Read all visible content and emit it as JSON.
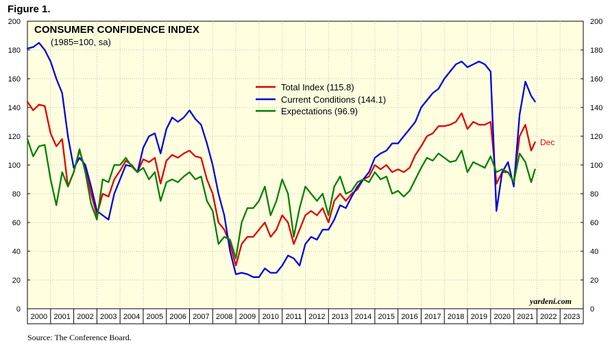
{
  "figure_label": "Figure 1.",
  "source": "Source: The Conference Board.",
  "chart_data": {
    "type": "line",
    "title": "CONSUMER CONFIDENCE INDEX",
    "subtitle": "(1985=100, sa)",
    "brand": "yardeni.com",
    "annotation": "Dec",
    "ylim": [
      0,
      200
    ],
    "yticks": [
      0,
      20,
      40,
      60,
      80,
      100,
      120,
      140,
      160,
      180,
      200
    ],
    "xlim": [
      2000,
      2024
    ],
    "xtick_labels": [
      "2000",
      "2001",
      "2002",
      "2003",
      "2004",
      "2005",
      "2006",
      "2007",
      "2008",
      "2009",
      "2010",
      "2011",
      "2012",
      "2013",
      "2014",
      "2015",
      "2016",
      "2017",
      "2018",
      "2019",
      "2020",
      "2021",
      "2022",
      "2023"
    ],
    "grid": true,
    "legend_position": "top-center",
    "colors": {
      "background": "#ffffe0",
      "total": "#e00000",
      "current": "#0000e0",
      "expectations": "#008000"
    },
    "series": [
      {
        "name": "Total Index",
        "legend": "Total Index (115.8)",
        "color": "#e00000",
        "points": [
          [
            2000.0,
            144
          ],
          [
            2000.25,
            138
          ],
          [
            2000.5,
            142
          ],
          [
            2000.75,
            141
          ],
          [
            2001.0,
            122
          ],
          [
            2001.25,
            113
          ],
          [
            2001.5,
            118
          ],
          [
            2001.75,
            85
          ],
          [
            2002.0,
            95
          ],
          [
            2002.25,
            110
          ],
          [
            2002.5,
            97
          ],
          [
            2002.75,
            80
          ],
          [
            2003.0,
            65
          ],
          [
            2003.25,
            80
          ],
          [
            2003.5,
            78
          ],
          [
            2003.75,
            90
          ],
          [
            2004.0,
            96
          ],
          [
            2004.25,
            103
          ],
          [
            2004.5,
            100
          ],
          [
            2004.75,
            95
          ],
          [
            2005.0,
            104
          ],
          [
            2005.25,
            102
          ],
          [
            2005.5,
            105
          ],
          [
            2005.75,
            87
          ],
          [
            2006.0,
            103
          ],
          [
            2006.25,
            107
          ],
          [
            2006.5,
            105
          ],
          [
            2006.75,
            108
          ],
          [
            2007.0,
            110
          ],
          [
            2007.25,
            106
          ],
          [
            2007.5,
            105
          ],
          [
            2007.75,
            90
          ],
          [
            2008.0,
            80
          ],
          [
            2008.25,
            60
          ],
          [
            2008.5,
            55
          ],
          [
            2008.75,
            45
          ],
          [
            2009.0,
            30
          ],
          [
            2009.25,
            45
          ],
          [
            2009.5,
            50
          ],
          [
            2009.75,
            50
          ],
          [
            2010.0,
            55
          ],
          [
            2010.25,
            60
          ],
          [
            2010.5,
            50
          ],
          [
            2010.75,
            55
          ],
          [
            2011.0,
            65
          ],
          [
            2011.25,
            60
          ],
          [
            2011.5,
            45
          ],
          [
            2011.75,
            55
          ],
          [
            2012.0,
            65
          ],
          [
            2012.25,
            68
          ],
          [
            2012.5,
            65
          ],
          [
            2012.75,
            70
          ],
          [
            2013.0,
            60
          ],
          [
            2013.25,
            75
          ],
          [
            2013.5,
            80
          ],
          [
            2013.75,
            75
          ],
          [
            2014.0,
            80
          ],
          [
            2014.25,
            83
          ],
          [
            2014.5,
            90
          ],
          [
            2014.75,
            92
          ],
          [
            2015.0,
            100
          ],
          [
            2015.25,
            97
          ],
          [
            2015.5,
            100
          ],
          [
            2015.75,
            95
          ],
          [
            2016.0,
            97
          ],
          [
            2016.25,
            95
          ],
          [
            2016.5,
            98
          ],
          [
            2016.75,
            107
          ],
          [
            2017.0,
            113
          ],
          [
            2017.25,
            120
          ],
          [
            2017.5,
            122
          ],
          [
            2017.75,
            127
          ],
          [
            2018.0,
            127
          ],
          [
            2018.25,
            128
          ],
          [
            2018.5,
            130
          ],
          [
            2018.75,
            136
          ],
          [
            2019.0,
            125
          ],
          [
            2019.25,
            130
          ],
          [
            2019.5,
            128
          ],
          [
            2019.75,
            128
          ],
          [
            2020.0,
            130
          ],
          [
            2020.25,
            87
          ],
          [
            2020.5,
            95
          ],
          [
            2020.75,
            95
          ],
          [
            2021.0,
            88
          ],
          [
            2021.25,
            120
          ],
          [
            2021.5,
            128
          ],
          [
            2021.75,
            110
          ],
          [
            2021.917,
            115.8
          ]
        ]
      },
      {
        "name": "Current Conditions",
        "legend": "Current Conditions (144.1)",
        "color": "#0000e0",
        "points": [
          [
            2000.0,
            181
          ],
          [
            2000.25,
            182
          ],
          [
            2000.5,
            185
          ],
          [
            2000.75,
            180
          ],
          [
            2001.0,
            172
          ],
          [
            2001.25,
            160
          ],
          [
            2001.5,
            150
          ],
          [
            2001.75,
            120
          ],
          [
            2002.0,
            98
          ],
          [
            2002.25,
            105
          ],
          [
            2002.5,
            100
          ],
          [
            2002.75,
            85
          ],
          [
            2003.0,
            68
          ],
          [
            2003.25,
            65
          ],
          [
            2003.5,
            62
          ],
          [
            2003.75,
            80
          ],
          [
            2004.0,
            90
          ],
          [
            2004.25,
            100
          ],
          [
            2004.5,
            99
          ],
          [
            2004.75,
            95
          ],
          [
            2005.0,
            112
          ],
          [
            2005.25,
            120
          ],
          [
            2005.5,
            122
          ],
          [
            2005.75,
            108
          ],
          [
            2006.0,
            125
          ],
          [
            2006.25,
            133
          ],
          [
            2006.5,
            130
          ],
          [
            2006.75,
            133
          ],
          [
            2007.0,
            138
          ],
          [
            2007.25,
            132
          ],
          [
            2007.5,
            128
          ],
          [
            2007.75,
            115
          ],
          [
            2008.0,
            100
          ],
          [
            2008.25,
            80
          ],
          [
            2008.5,
            65
          ],
          [
            2008.75,
            40
          ],
          [
            2009.0,
            24
          ],
          [
            2009.25,
            25
          ],
          [
            2009.5,
            24
          ],
          [
            2009.75,
            22
          ],
          [
            2010.0,
            22
          ],
          [
            2010.25,
            28
          ],
          [
            2010.5,
            25
          ],
          [
            2010.75,
            25
          ],
          [
            2011.0,
            30
          ],
          [
            2011.25,
            37
          ],
          [
            2011.5,
            35
          ],
          [
            2011.75,
            30
          ],
          [
            2012.0,
            45
          ],
          [
            2012.25,
            50
          ],
          [
            2012.5,
            48
          ],
          [
            2012.75,
            55
          ],
          [
            2013.0,
            55
          ],
          [
            2013.25,
            62
          ],
          [
            2013.5,
            72
          ],
          [
            2013.75,
            70
          ],
          [
            2014.0,
            78
          ],
          [
            2014.25,
            85
          ],
          [
            2014.5,
            90
          ],
          [
            2014.75,
            95
          ],
          [
            2015.0,
            105
          ],
          [
            2015.25,
            108
          ],
          [
            2015.5,
            110
          ],
          [
            2015.75,
            115
          ],
          [
            2016.0,
            115
          ],
          [
            2016.25,
            120
          ],
          [
            2016.5,
            125
          ],
          [
            2016.75,
            130
          ],
          [
            2017.0,
            140
          ],
          [
            2017.25,
            145
          ],
          [
            2017.5,
            150
          ],
          [
            2017.75,
            153
          ],
          [
            2018.0,
            160
          ],
          [
            2018.25,
            165
          ],
          [
            2018.5,
            170
          ],
          [
            2018.75,
            172
          ],
          [
            2019.0,
            168
          ],
          [
            2019.25,
            170
          ],
          [
            2019.5,
            172
          ],
          [
            2019.75,
            170
          ],
          [
            2020.0,
            165
          ],
          [
            2020.25,
            68
          ],
          [
            2020.5,
            95
          ],
          [
            2020.75,
            102
          ],
          [
            2021.0,
            85
          ],
          [
            2021.25,
            135
          ],
          [
            2021.5,
            158
          ],
          [
            2021.75,
            148
          ],
          [
            2021.917,
            144.1
          ]
        ]
      },
      {
        "name": "Expectations",
        "legend": "Expectations (96.9)",
        "color": "#008000",
        "points": [
          [
            2000.0,
            118
          ],
          [
            2000.25,
            106
          ],
          [
            2000.5,
            113
          ],
          [
            2000.75,
            114
          ],
          [
            2001.0,
            90
          ],
          [
            2001.25,
            72
          ],
          [
            2001.5,
            95
          ],
          [
            2001.75,
            85
          ],
          [
            2002.0,
            95
          ],
          [
            2002.25,
            111
          ],
          [
            2002.5,
            95
          ],
          [
            2002.75,
            73
          ],
          [
            2003.0,
            62
          ],
          [
            2003.25,
            90
          ],
          [
            2003.5,
            88
          ],
          [
            2003.75,
            100
          ],
          [
            2004.0,
            100
          ],
          [
            2004.25,
            105
          ],
          [
            2004.5,
            99
          ],
          [
            2004.75,
            95
          ],
          [
            2005.0,
            98
          ],
          [
            2005.25,
            90
          ],
          [
            2005.5,
            95
          ],
          [
            2005.75,
            75
          ],
          [
            2006.0,
            88
          ],
          [
            2006.25,
            90
          ],
          [
            2006.5,
            88
          ],
          [
            2006.75,
            92
          ],
          [
            2007.0,
            95
          ],
          [
            2007.25,
            90
          ],
          [
            2007.5,
            92
          ],
          [
            2007.75,
            75
          ],
          [
            2008.0,
            68
          ],
          [
            2008.25,
            45
          ],
          [
            2008.5,
            50
          ],
          [
            2008.75,
            48
          ],
          [
            2009.0,
            35
          ],
          [
            2009.25,
            60
          ],
          [
            2009.5,
            70
          ],
          [
            2009.75,
            70
          ],
          [
            2010.0,
            75
          ],
          [
            2010.25,
            85
          ],
          [
            2010.5,
            65
          ],
          [
            2010.75,
            75
          ],
          [
            2011.0,
            90
          ],
          [
            2011.25,
            80
          ],
          [
            2011.5,
            50
          ],
          [
            2011.75,
            70
          ],
          [
            2012.0,
            85
          ],
          [
            2012.25,
            80
          ],
          [
            2012.5,
            75
          ],
          [
            2012.75,
            80
          ],
          [
            2013.0,
            65
          ],
          [
            2013.25,
            85
          ],
          [
            2013.5,
            92
          ],
          [
            2013.75,
            80
          ],
          [
            2014.0,
            82
          ],
          [
            2014.25,
            88
          ],
          [
            2014.5,
            90
          ],
          [
            2014.75,
            88
          ],
          [
            2015.0,
            95
          ],
          [
            2015.25,
            90
          ],
          [
            2015.5,
            92
          ],
          [
            2015.75,
            80
          ],
          [
            2016.0,
            82
          ],
          [
            2016.25,
            78
          ],
          [
            2016.5,
            82
          ],
          [
            2016.75,
            90
          ],
          [
            2017.0,
            98
          ],
          [
            2017.25,
            105
          ],
          [
            2017.5,
            103
          ],
          [
            2017.75,
            108
          ],
          [
            2018.0,
            105
          ],
          [
            2018.25,
            102
          ],
          [
            2018.5,
            103
          ],
          [
            2018.75,
            110
          ],
          [
            2019.0,
            95
          ],
          [
            2019.25,
            102
          ],
          [
            2019.5,
            100
          ],
          [
            2019.75,
            98
          ],
          [
            2020.0,
            106
          ],
          [
            2020.25,
            95
          ],
          [
            2020.5,
            97
          ],
          [
            2020.75,
            95
          ],
          [
            2021.0,
            88
          ],
          [
            2021.25,
            108
          ],
          [
            2021.5,
            102
          ],
          [
            2021.75,
            88
          ],
          [
            2021.917,
            96.9
          ]
        ]
      }
    ]
  }
}
